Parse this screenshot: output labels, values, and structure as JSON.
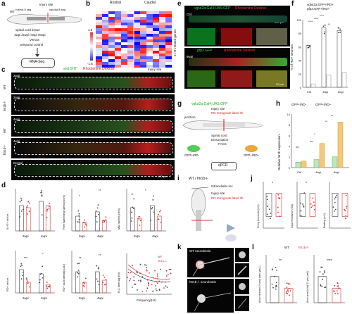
{
  "labels": {
    "a": "a",
    "b": "b",
    "c": "c",
    "d": "d",
    "e": "e",
    "f": "f",
    "g": "g",
    "h": "h",
    "i": "i",
    "j": "j",
    "k": "k",
    "l": "l"
  },
  "panel_a": {
    "wt": "WT",
    "injury_site": "Injury site",
    "rostral_seg": "rostral-5 seg",
    "caudal_seg": "caudal-8 seg",
    "spinal_tissue": "spinal cord tissue",
    "timepoints": "1wpi /2wpi /4wpi /6wpi",
    "versus": "Versus",
    "uninjured": "uninjured control",
    "rnaseq": "RNA-Seq"
  },
  "panel_b": {
    "rostral": "Rostral",
    "caudal": "Caudal",
    "scale_top": "1.5",
    "scale_bottom": "-1.5",
    "side_label": "5-HT-related genes"
  },
  "panel_c": {
    "legend_a": "anti-5HT",
    "legend_b": "Rhodamine Dextran",
    "injury_site": "Injury site",
    "rows": [
      {
        "tp": "2wpi",
        "geno": "WT"
      },
      {
        "tp": "2wpi",
        "geno": "htr1b-/-"
      },
      {
        "tp": "4wpi",
        "geno": "WT"
      },
      {
        "tp": "4wpi",
        "geno": "htr1b-/-"
      },
      {
        "tp": "Dorsal",
        "geno": ""
      }
    ],
    "scale": "100 μm"
  },
  "panel_d": {
    "y_labels": [
      "5-HT+ cell nr.",
      "Free swimming speed (cm/s)",
      "Max speed (cm/s)",
      "RD+ cell nr.",
      "RD+ axon density (AU)",
      "R-C time lag (ms)"
    ],
    "x_groups": [
      "2wpi",
      "4wpi"
    ],
    "sig": [
      "*",
      "**",
      "**",
      "*",
      "***",
      "*",
      "**",
      "**"
    ],
    "freq_label": "Frequency(Hz)",
    "legend": [
      "WT",
      "htr1b-/-"
    ]
  },
  "panel_e": {
    "row1_title": "vglut2a:Gal4;UAS:GFP",
    "row1_b": "Rhodamine Dextran",
    "row2_title": "gfp2 GFP",
    "row2_b": "Rhodamine Dextran",
    "tp1": "Ctrl",
    "tp2": "8wpi",
    "scale": "100 μm",
    "scale2": "20 μm"
  },
  "panel_f": {
    "legend_1": "vglut2a:GFP+/RD+",
    "legend_2": "gfp2:GFP+/RD+",
    "y_label": "% of RD+ neurons",
    "x": [
      "Ctrl",
      "4wpi",
      "8wpi"
    ],
    "sig": [
      "****",
      "****",
      "****",
      "**"
    ],
    "y_ticks": [
      "100",
      "80",
      "60",
      "40",
      "20",
      "0"
    ]
  },
  "panel_g": {
    "title": "vglut2a:Gal4;UAS:GFP",
    "injury": "Injury site",
    "rd": "RD retrograde label 3h",
    "junction": "junction",
    "spinal": "Spinal cord",
    "dissoc": "Dissociation",
    "facs": "FACS",
    "pos": "GFP+/RD-",
    "neg": "GFP+/RD+",
    "qpcr": "qPCR"
  },
  "panel_h": {
    "legend": [
      "GFP+/RD-",
      "GFP+/RD+"
    ],
    "y_label": "Relative htr1b expression",
    "x": [
      "Ctrl",
      "4wpi",
      "8wpi"
    ],
    "sig": [
      "ns",
      "ns",
      "*",
      "**",
      "**"
    ],
    "y_ticks": [
      "10",
      "8",
      "6",
      "4",
      "2",
      "0"
    ]
  },
  "panel_i": {
    "title": "WT / htr1b-/-",
    "rec": "Intracellular rec",
    "injury": "Injury site",
    "rd": "RD retrograde label 3h"
  },
  "panel_j": {
    "y_labels": [
      "Firing threshold (mV)",
      "Input resistance (GΩ)",
      "Resting (mV)"
    ],
    "sig": [
      "*",
      "*"
    ]
  },
  "panel_k": {
    "wt": "WT neurobiotin",
    "mut": "htr1b-/- neurobiotin"
  },
  "panel_l": {
    "legend": [
      "WT",
      "htr1b-/-"
    ],
    "y1": "Axon thickness / soma area (μm-1)",
    "y2": "Axon area (initial 20 μm, μm2)",
    "sig": [
      "**",
      "****"
    ]
  },
  "colors": {
    "wt": "#444444",
    "mut": "#e03030",
    "green": "#39c739",
    "red": "#e0211b",
    "grey": "#999999",
    "orange": "#f0a030"
  }
}
